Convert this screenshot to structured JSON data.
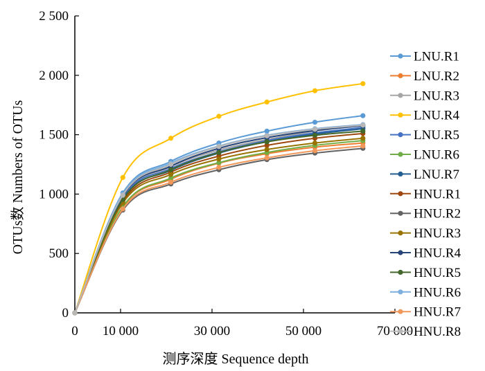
{
  "chart_data": {
    "type": "line",
    "title": "",
    "xlabel": "测序深度  Sequence depth",
    "ylabel": "OTUs数  Numbers of OTUs",
    "xlim": [
      0,
      70000
    ],
    "ylim": [
      0,
      2500
    ],
    "x_tick_labels": [
      "0",
      "10 000",
      "30 000",
      "50 000",
      "70 000"
    ],
    "y_tick_labels": [
      "0",
      "500",
      "1 000",
      "1 500",
      "2 000",
      "2 500"
    ],
    "grid": false,
    "legend_position": "right",
    "x": [
      0,
      10500,
      21000,
      31500,
      42000,
      52500,
      63000
    ],
    "series": [
      {
        "name": "LNU.R1",
        "color": "#5b9bd5",
        "values": [
          0,
          1010,
          1275,
          1430,
          1530,
          1605,
          1660
        ]
      },
      {
        "name": "LNU.R2",
        "color": "#ed7d31",
        "values": [
          0,
          890,
          1125,
          1260,
          1340,
          1395,
          1430
        ]
      },
      {
        "name": "LNU.R3",
        "color": "#a5a5a5",
        "values": [
          0,
          980,
          1230,
          1370,
          1460,
          1530,
          1580
        ]
      },
      {
        "name": "LNU.R4",
        "color": "#ffc000",
        "values": [
          0,
          1140,
          1470,
          1655,
          1775,
          1870,
          1930
        ]
      },
      {
        "name": "LNU.R5",
        "color": "#4472c4",
        "values": [
          0,
          970,
          1215,
          1355,
          1450,
          1515,
          1560
        ]
      },
      {
        "name": "LNU.R6",
        "color": "#70ad47",
        "values": [
          0,
          895,
          1135,
          1265,
          1350,
          1410,
          1450
        ]
      },
      {
        "name": "LNU.R7",
        "color": "#255e91",
        "values": [
          0,
          960,
          1200,
          1345,
          1440,
          1505,
          1550
        ]
      },
      {
        "name": "HNU.R1",
        "color": "#9e480e",
        "values": [
          0,
          940,
          1185,
          1320,
          1410,
          1470,
          1510
        ]
      },
      {
        "name": "HNU.R2",
        "color": "#636363",
        "values": [
          0,
          865,
          1085,
          1205,
          1290,
          1345,
          1385
        ]
      },
      {
        "name": "HNU.R3",
        "color": "#997300",
        "values": [
          0,
          925,
          1165,
          1295,
          1375,
          1430,
          1470
        ]
      },
      {
        "name": "HNU.R4",
        "color": "#264478",
        "values": [
          0,
          985,
          1235,
          1385,
          1475,
          1535,
          1575
        ]
      },
      {
        "name": "HNU.R5",
        "color": "#43682b",
        "values": [
          0,
          955,
          1205,
          1350,
          1440,
          1495,
          1530
        ]
      },
      {
        "name": "HNU.R6",
        "color": "#7cafdd",
        "values": [
          0,
          1000,
          1260,
          1405,
          1495,
          1550,
          1585
        ]
      },
      {
        "name": "HNU.R7",
        "color": "#f1975a",
        "values": [
          0,
          875,
          1100,
          1225,
          1305,
          1365,
          1405
        ]
      },
      {
        "name": "HNU.R8",
        "color": "#b7b7b7",
        "values": [
          0,
          990,
          1250,
          1400,
          1490,
          1545,
          1580
        ]
      }
    ]
  }
}
